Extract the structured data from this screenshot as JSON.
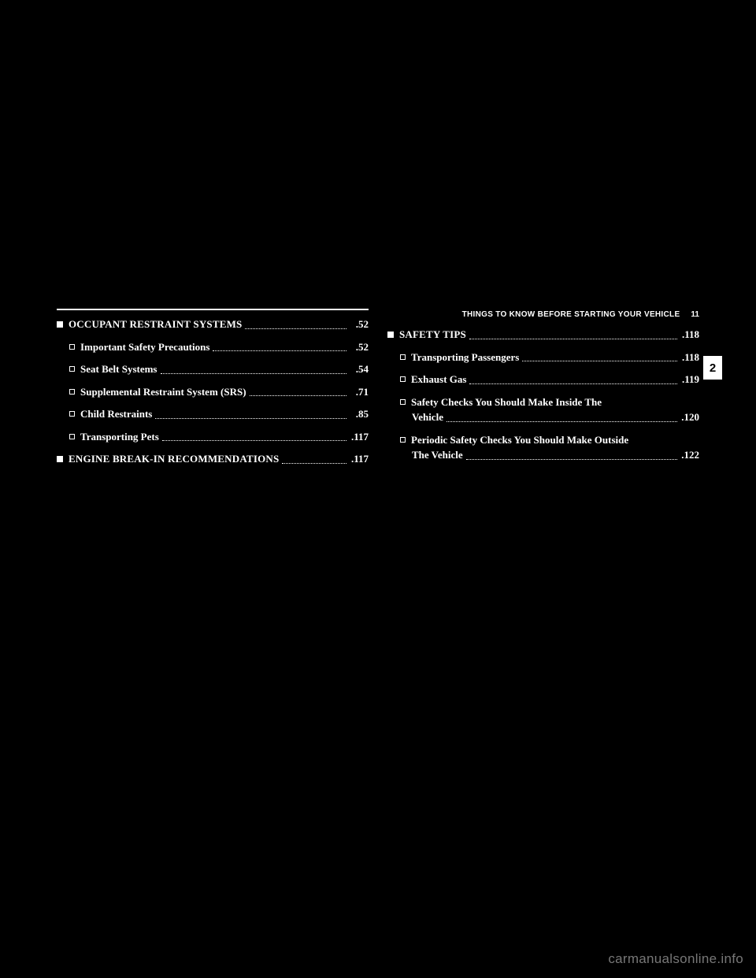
{
  "header": {
    "title": "THINGS TO KNOW BEFORE STARTING YOUR VEHICLE",
    "page": "11"
  },
  "side_tab": "2",
  "watermark": "carmanualsonline.info",
  "left_col": [
    {
      "type": "main",
      "label": "OCCUPANT RESTRAINT SYSTEMS",
      "page": ".52"
    },
    {
      "type": "sub",
      "label": "Important Safety Precautions",
      "page": ".52"
    },
    {
      "type": "sub",
      "label": "Seat Belt Systems",
      "page": ".54"
    },
    {
      "type": "sub",
      "label": "Supplemental Restraint System (SRS)",
      "page": ".71"
    },
    {
      "type": "sub",
      "label": "Child Restraints",
      "page": ".85"
    },
    {
      "type": "sub",
      "label": "Transporting Pets",
      "page": ".117"
    },
    {
      "type": "main",
      "label": "ENGINE BREAK-IN RECOMMENDATIONS",
      "page": ".117"
    }
  ],
  "right_col": [
    {
      "type": "main",
      "label": "SAFETY TIPS",
      "page": ".118"
    },
    {
      "type": "sub",
      "label": "Transporting Passengers",
      "page": ".118"
    },
    {
      "type": "sub",
      "label": "Exhaust Gas",
      "page": ".119"
    },
    {
      "type": "sub_multi",
      "line1": "Safety Checks You Should Make Inside The",
      "line2": "Vehicle",
      "page": ".120"
    },
    {
      "type": "sub_multi",
      "line1": "Periodic Safety Checks You Should Make Outside",
      "line2": "The Vehicle",
      "page": ".122"
    }
  ]
}
